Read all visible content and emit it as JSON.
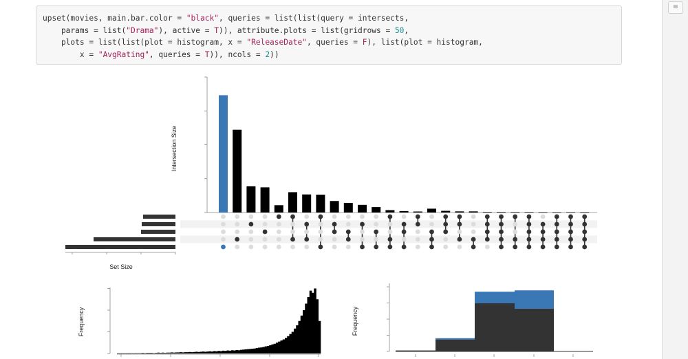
{
  "code": {
    "lines": [
      [
        {
          "t": "upset(movies, main.bar.color = "
        },
        {
          "t": "\"black\"",
          "c": "str"
        },
        {
          "t": ", queries = list(list(query = intersects,"
        }
      ],
      [
        {
          "t": "    params = list("
        },
        {
          "t": "\"Drama\"",
          "c": "str"
        },
        {
          "t": "), active = "
        },
        {
          "t": "T",
          "c": "str"
        },
        {
          "t": ")), attribute.plots = list(gridrows = "
        },
        {
          "t": "50",
          "c": "num"
        },
        {
          "t": ","
        }
      ],
      [
        {
          "t": "    plots = list(list(plot = histogram, x = "
        },
        {
          "t": "\"ReleaseDate\"",
          "c": "str"
        },
        {
          "t": ", queries = "
        },
        {
          "t": "F",
          "c": "str"
        },
        {
          "t": "), list(plot = histogram,"
        }
      ],
      [
        {
          "t": "        x = "
        },
        {
          "t": "\"AvgRating\"",
          "c": "str"
        },
        {
          "t": ", queries = "
        },
        {
          "t": "T",
          "c": "str"
        },
        {
          "t": ")), ncols = "
        },
        {
          "t": "2",
          "c": "num"
        },
        {
          "t": "))"
        }
      ]
    ]
  },
  "scrollbar_icon": "hamburger-icon",
  "colors": {
    "bar": "#000000",
    "query": "#3a77b5",
    "dot_on": "#333333",
    "dot_off": "#dcdcdc",
    "hist": "#333333"
  },
  "chart_data": [
    {
      "type": "bar",
      "subtype": "upset-intersections",
      "ylabel": "Intersection Size",
      "ylim": [
        0,
        1200
      ],
      "yticks": [
        0,
        300,
        600,
        900,
        1200
      ],
      "values": [
        1039,
        733,
        232,
        223,
        65,
        180,
        160,
        158,
        102,
        85,
        68,
        48,
        21,
        13,
        9,
        34,
        15,
        10,
        10,
        5,
        5,
        4,
        4,
        2,
        2,
        3,
        1
      ],
      "highlighted_index": 0,
      "sets": [
        "Romance",
        "Thriller",
        "Action",
        "Comedy",
        "Drama"
      ],
      "membership": [
        [
          "Drama"
        ],
        [
          "Comedy"
        ],
        [
          "Thriller"
        ],
        [
          "Action"
        ],
        [
          "Romance"
        ],
        [
          "Romance",
          "Comedy"
        ],
        [
          "Thriller",
          "Comedy"
        ],
        [
          "Romance",
          "Drama"
        ],
        [
          "Thriller",
          "Action"
        ],
        [
          "Action",
          "Comedy"
        ],
        [
          "Thriller",
          "Drama"
        ],
        [
          "Action",
          "Drama"
        ],
        [
          "Romance",
          "Comedy",
          "Drama"
        ],
        [
          "Thriller",
          "Action",
          "Drama"
        ],
        [
          "Romance",
          "Thriller"
        ],
        [
          "Action",
          "Comedy",
          "Drama"
        ],
        [
          "Romance",
          "Thriller",
          "Action"
        ],
        [
          "Romance",
          "Thriller",
          "Comedy"
        ],
        [
          "Comedy",
          "Drama"
        ],
        [
          "Romance",
          "Thriller",
          "Action",
          "Comedy"
        ],
        [
          "Romance",
          "Thriller",
          "Action",
          "Comedy",
          "Drama"
        ],
        [
          "Romance",
          "Comedy",
          "Drama"
        ],
        [
          "Romance",
          "Thriller",
          "Action",
          "Comedy",
          "Drama"
        ],
        [
          "Thriller",
          "Action",
          "Comedy",
          "Drama"
        ],
        [
          "Romance",
          "Thriller",
          "Action",
          "Comedy",
          "Drama"
        ],
        [
          "Romance",
          "Thriller",
          "Action",
          "Comedy",
          "Drama"
        ],
        [
          "Romance",
          "Thriller",
          "Action",
          "Comedy",
          "Drama"
        ]
      ]
    },
    {
      "type": "bar",
      "subtype": "set-size",
      "xlabel": "Set Size",
      "xlim": [
        1600,
        0
      ],
      "xticks": [
        1500,
        1000,
        500,
        0
      ],
      "categories": [
        "Romance",
        "Thriller",
        "Action",
        "Comedy",
        "Drama"
      ],
      "values": [
        470,
        490,
        500,
        1190,
        1600
      ]
    },
    {
      "type": "bar",
      "subtype": "histogram",
      "x_variable": "ReleaseDate",
      "ylabel": "Frequency",
      "ylim": [
        0,
        330
      ],
      "yticks": [
        0,
        100,
        200,
        300
      ],
      "values": [
        1,
        1,
        1,
        1,
        1,
        2,
        1,
        1,
        2,
        2,
        2,
        3,
        2,
        3,
        3,
        3,
        2,
        3,
        4,
        3,
        4,
        3,
        4,
        4,
        5,
        4,
        5,
        5,
        6,
        5,
        6,
        6,
        7,
        6,
        7,
        8,
        7,
        8,
        9,
        8,
        9,
        10,
        9,
        11,
        10,
        12,
        11,
        13,
        12,
        14,
        13,
        15,
        14,
        16,
        15,
        17,
        18,
        19,
        20,
        21,
        22,
        23,
        25,
        27,
        28,
        30,
        33,
        35,
        38,
        42,
        45,
        50,
        55,
        60,
        65,
        72,
        80,
        90,
        100,
        115,
        130,
        150,
        175,
        200,
        230,
        260,
        290,
        280,
        300,
        250,
        150
      ]
    },
    {
      "type": "area",
      "subtype": "stacked-histogram",
      "x_variable": "AvgRating",
      "ylabel": "Frequency",
      "ylim": [
        0,
        2150
      ],
      "yticks": [
        0,
        500,
        1000,
        1500,
        2000
      ],
      "series": [
        {
          "values": [
            30,
            370,
            1490,
            1320,
            0
          ]
        },
        {
          "values": [
            0,
            40,
            360,
            570,
            0
          ]
        }
      ]
    }
  ]
}
